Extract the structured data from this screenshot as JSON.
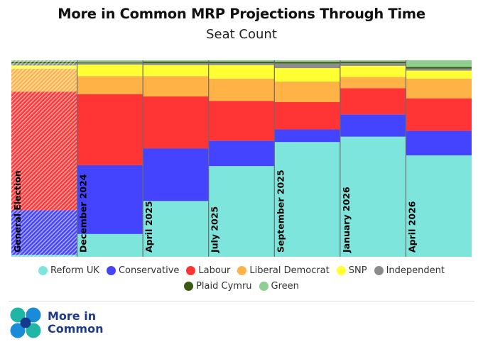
{
  "header": {
    "title": "More in Common MRP Projections Through Time",
    "subtitle": "Seat Count"
  },
  "colors": {
    "Reform UK": "#7ee5dc",
    "Conservative": "#4444ff",
    "Labour": "#ff3535",
    "Liberal Democrat": "#ffb347",
    "SNP": "#ffff33",
    "Independent": "#8c8c8c",
    "Plaid Cymru": "#3a5a13",
    "Green": "#8fcf8f"
  },
  "chart_data": {
    "type": "bar",
    "stacked": true,
    "normalized_total_seats": 650,
    "categories": [
      "General Election",
      "December 2024",
      "April 2025",
      "July 2025",
      "September 2025",
      "January 2026",
      "April 2026"
    ],
    "hatched_categories": [
      "General Election"
    ],
    "series": [
      {
        "name": "Reform UK",
        "values": [
          5,
          58,
          142,
          228,
          292,
          302,
          256
        ]
      },
      {
        "name": "Conservative",
        "values": [
          121,
          175,
          134,
          64,
          32,
          56,
          62
        ]
      },
      {
        "name": "Labour",
        "values": [
          322,
          181,
          132,
          100,
          70,
          66,
          82
        ]
      },
      {
        "name": "Liberal Democrat",
        "values": [
          62,
          46,
          52,
          56,
          52,
          28,
          50
        ]
      },
      {
        "name": "SNP",
        "values": [
          9,
          29,
          28,
          34,
          34,
          28,
          20
        ]
      },
      {
        "name": "Independent",
        "values": [
          6,
          5,
          5,
          5,
          12,
          7,
          5
        ]
      },
      {
        "name": "Plaid Cymru",
        "values": [
          4,
          2,
          4,
          4,
          4,
          4,
          4
        ]
      },
      {
        "name": "Green",
        "values": [
          4,
          4,
          3,
          3,
          4,
          3,
          17
        ]
      }
    ],
    "legend_position": "bottom"
  },
  "legend": {
    "row1": [
      "Reform UK",
      "Conservative",
      "Labour",
      "Liberal Democrat",
      "SNP",
      "Independent"
    ],
    "row2": [
      "Plaid Cymru",
      "Green"
    ]
  },
  "brand": {
    "name_line1": "More in",
    "name_line2": "Common",
    "logo_colors": [
      "#1fb6a6",
      "#1a8bd6",
      "#123b8c"
    ]
  }
}
